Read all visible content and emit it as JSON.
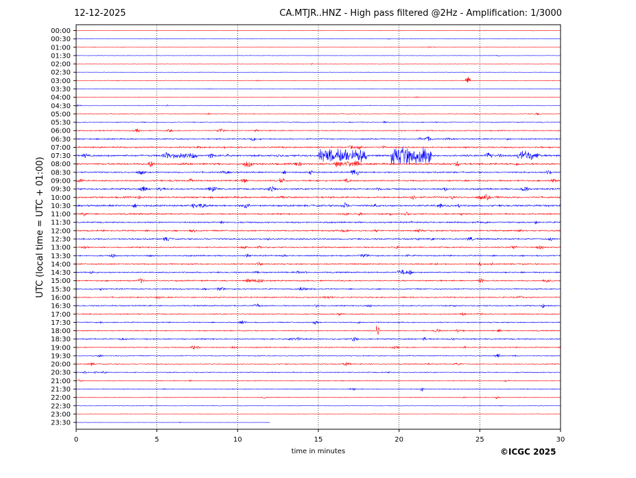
{
  "header": {
    "date": "12-12-2025",
    "title": "CA.MTJR..HNZ - High pass filtered @2Hz - Amplification: 1/3000"
  },
  "footer": {
    "credit": "©ICGC 2025"
  },
  "colors": {
    "row_even": "#ff0000",
    "row_odd": "#0000ff",
    "grid": "#000000",
    "background": "#ffffff"
  },
  "chart_data": {
    "type": "line",
    "title": "CA.MTJR..HNZ - High pass filtered @2Hz - Amplification: 1/3000",
    "xlabel": "time in minutes",
    "ylabel": "UTC (local time = UTC + 01:00)",
    "xlim": [
      0,
      30
    ],
    "x_ticks": [
      "0",
      "5",
      "10",
      "15",
      "20",
      "25",
      "30"
    ],
    "x_grid": "dotted vertical lines at 5-minute intervals",
    "row_labels": [
      "00:00",
      "00:30",
      "01:00",
      "01:30",
      "02:00",
      "02:30",
      "03:00",
      "03:30",
      "04:00",
      "04:30",
      "05:00",
      "05:30",
      "06:00",
      "06:30",
      "07:00",
      "07:30",
      "08:00",
      "08:30",
      "09:00",
      "09:30",
      "10:00",
      "10:30",
      "11:00",
      "11:30",
      "12:00",
      "12:30",
      "13:00",
      "13:30",
      "14:00",
      "14:30",
      "15:00",
      "15:30",
      "16:00",
      "16:30",
      "17:00",
      "17:30",
      "18:00",
      "18:30",
      "19:00",
      "19:30",
      "20:00",
      "20:30",
      "21:00",
      "21:30",
      "22:00",
      "22:30",
      "23:00",
      "23:30"
    ],
    "recorded_until": {
      "row": "23:30",
      "minute": 12
    },
    "noise_level": [
      0.2,
      0.2,
      0.3,
      0.3,
      0.3,
      0.3,
      0.4,
      0.3,
      0.3,
      0.4,
      0.5,
      0.6,
      0.8,
      1.0,
      1.1,
      1.4,
      1.4,
      1.1,
      1.1,
      1.2,
      1.3,
      1.4,
      1.1,
      1.1,
      1.1,
      1.1,
      1.0,
      1.0,
      1.0,
      1.0,
      1.0,
      0.9,
      0.9,
      0.9,
      0.8,
      0.8,
      0.8,
      1.0,
      0.8,
      0.7,
      0.7,
      0.7,
      0.6,
      0.6,
      0.5,
      0.4,
      0.3,
      0.2
    ],
    "events": [
      {
        "row": "07:30",
        "start": 15.0,
        "end": 18.0,
        "amplitude": 11
      },
      {
        "row": "07:30",
        "start": 19.5,
        "end": 22.0,
        "amplitude": 15
      },
      {
        "row": "07:30",
        "start": 5.3,
        "end": 7.5,
        "amplitude": 5
      },
      {
        "row": "07:30",
        "start": 27.3,
        "end": 28.3,
        "amplitude": 8
      },
      {
        "row": "08:00",
        "start": 16.0,
        "end": 17.5,
        "amplitude": 5
      },
      {
        "row": "08:30",
        "start": 17.0,
        "end": 17.5,
        "amplitude": 5
      },
      {
        "row": "03:00",
        "start": 24.1,
        "end": 24.4,
        "amplitude": 6
      },
      {
        "row": "09:00",
        "start": 12.6,
        "end": 12.9,
        "amplitude": 4
      },
      {
        "row": "10:30",
        "start": 7.3,
        "end": 7.8,
        "amplitude": 4
      },
      {
        "row": "14:30",
        "start": 19.9,
        "end": 20.3,
        "amplitude": 4
      },
      {
        "row": "18:00",
        "start": 18.6,
        "end": 18.8,
        "amplitude": 8
      },
      {
        "row": "21:30",
        "start": 21.3,
        "end": 21.5,
        "amplitude": 4
      }
    ]
  }
}
